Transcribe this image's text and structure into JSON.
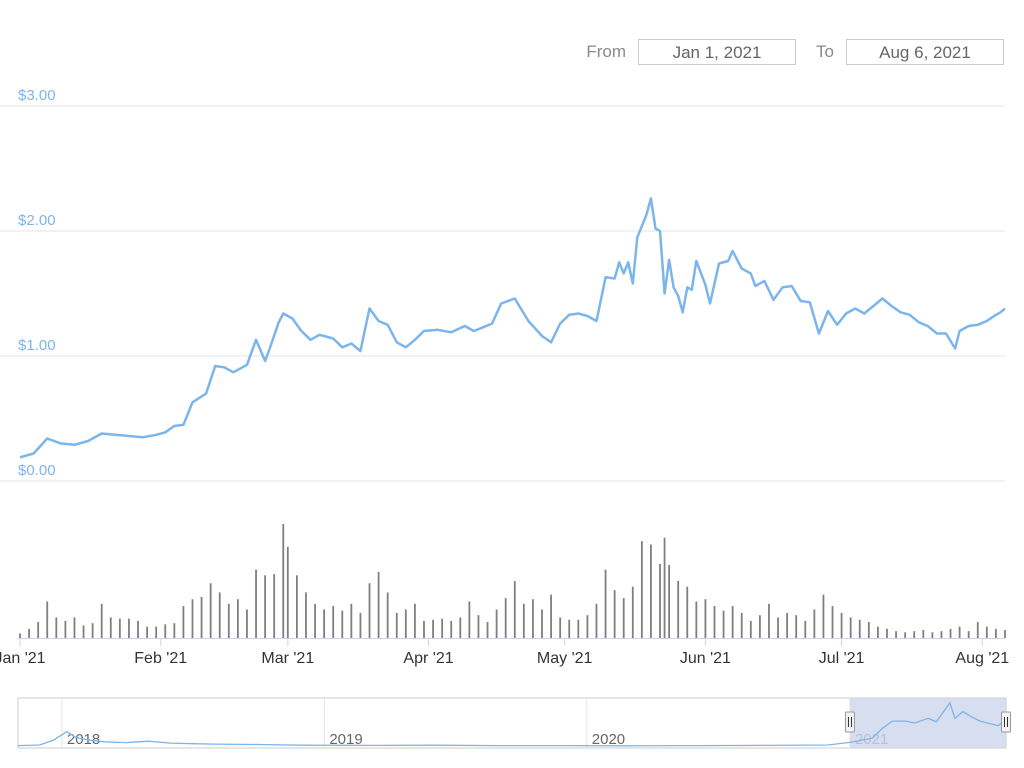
{
  "range_selector": {
    "from_label": "From",
    "from_value": "Jan 1, 2021",
    "to_label": "To",
    "to_value": "Aug 6, 2021"
  },
  "colors": {
    "price_line": "#7cb5ec",
    "volume_bar": "#7f7f7f",
    "grid": "#e6e6e6",
    "navigator_selection": "#ccd6eb"
  },
  "chart_data": {
    "type": "line",
    "title": "",
    "xlabel": "",
    "ylabel": "",
    "ylim": [
      0,
      3
    ],
    "y_ticks": [
      {
        "value": 0,
        "label": "$0.00"
      },
      {
        "value": 1,
        "label": "$1.00"
      },
      {
        "value": 2,
        "label": "$2.00"
      },
      {
        "value": 3,
        "label": "$3.00"
      }
    ],
    "x_ticks": [
      {
        "date": "2021-01-01",
        "label": "Jan '21"
      },
      {
        "date": "2021-02-01",
        "label": "Feb '21"
      },
      {
        "date": "2021-03-01",
        "label": "Mar '21"
      },
      {
        "date": "2021-04-01",
        "label": "Apr '21"
      },
      {
        "date": "2021-05-01",
        "label": "May '21"
      },
      {
        "date": "2021-06-01",
        "label": "Jun '21"
      },
      {
        "date": "2021-07-01",
        "label": "Jul '21"
      },
      {
        "date": "2021-08-01",
        "label": "Aug '21"
      }
    ],
    "grid": true,
    "legend": "none",
    "price_series": [
      [
        "2021-01-01",
        0.19
      ],
      [
        "2021-01-04",
        0.22
      ],
      [
        "2021-01-07",
        0.34
      ],
      [
        "2021-01-10",
        0.3
      ],
      [
        "2021-01-13",
        0.29
      ],
      [
        "2021-01-16",
        0.32
      ],
      [
        "2021-01-19",
        0.38
      ],
      [
        "2021-01-22",
        0.37
      ],
      [
        "2021-01-25",
        0.36
      ],
      [
        "2021-01-28",
        0.35
      ],
      [
        "2021-01-31",
        0.37
      ],
      [
        "2021-02-02",
        0.39
      ],
      [
        "2021-02-04",
        0.44
      ],
      [
        "2021-02-06",
        0.45
      ],
      [
        "2021-02-08",
        0.63
      ],
      [
        "2021-02-11",
        0.7
      ],
      [
        "2021-02-13",
        0.92
      ],
      [
        "2021-02-15",
        0.91
      ],
      [
        "2021-02-17",
        0.87
      ],
      [
        "2021-02-20",
        0.93
      ],
      [
        "2021-02-22",
        1.13
      ],
      [
        "2021-02-24",
        0.96
      ],
      [
        "2021-02-25",
        1.06
      ],
      [
        "2021-02-27",
        1.27
      ],
      [
        "2021-02-28",
        1.34
      ],
      [
        "2021-03-02",
        1.3
      ],
      [
        "2021-03-04",
        1.2
      ],
      [
        "2021-03-06",
        1.13
      ],
      [
        "2021-03-08",
        1.17
      ],
      [
        "2021-03-11",
        1.14
      ],
      [
        "2021-03-13",
        1.07
      ],
      [
        "2021-03-15",
        1.1
      ],
      [
        "2021-03-17",
        1.04
      ],
      [
        "2021-03-19",
        1.38
      ],
      [
        "2021-03-21",
        1.28
      ],
      [
        "2021-03-23",
        1.25
      ],
      [
        "2021-03-25",
        1.11
      ],
      [
        "2021-03-27",
        1.07
      ],
      [
        "2021-03-29",
        1.13
      ],
      [
        "2021-03-31",
        1.2
      ],
      [
        "2021-04-03",
        1.21
      ],
      [
        "2021-04-06",
        1.19
      ],
      [
        "2021-04-09",
        1.24
      ],
      [
        "2021-04-11",
        1.2
      ],
      [
        "2021-04-13",
        1.23
      ],
      [
        "2021-04-15",
        1.26
      ],
      [
        "2021-04-17",
        1.42
      ],
      [
        "2021-04-20",
        1.46
      ],
      [
        "2021-04-23",
        1.28
      ],
      [
        "2021-04-26",
        1.16
      ],
      [
        "2021-04-28",
        1.11
      ],
      [
        "2021-04-30",
        1.26
      ],
      [
        "2021-05-02",
        1.33
      ],
      [
        "2021-05-04",
        1.34
      ],
      [
        "2021-05-06",
        1.32
      ],
      [
        "2021-05-08",
        1.28
      ],
      [
        "2021-05-10",
        1.63
      ],
      [
        "2021-05-12",
        1.62
      ],
      [
        "2021-05-13",
        1.75
      ],
      [
        "2021-05-14",
        1.66
      ],
      [
        "2021-05-15",
        1.75
      ],
      [
        "2021-05-16",
        1.58
      ],
      [
        "2021-05-17",
        1.95
      ],
      [
        "2021-05-19",
        2.13
      ],
      [
        "2021-05-20",
        2.26
      ],
      [
        "2021-05-21",
        2.02
      ],
      [
        "2021-05-22",
        2.0
      ],
      [
        "2021-05-23",
        1.5
      ],
      [
        "2021-05-24",
        1.77
      ],
      [
        "2021-05-25",
        1.55
      ],
      [
        "2021-05-26",
        1.48
      ],
      [
        "2021-05-27",
        1.35
      ],
      [
        "2021-05-28",
        1.55
      ],
      [
        "2021-05-29",
        1.53
      ],
      [
        "2021-05-30",
        1.76
      ],
      [
        "2021-06-01",
        1.57
      ],
      [
        "2021-06-02",
        1.42
      ],
      [
        "2021-06-04",
        1.74
      ],
      [
        "2021-06-06",
        1.76
      ],
      [
        "2021-06-07",
        1.84
      ],
      [
        "2021-06-09",
        1.7
      ],
      [
        "2021-06-11",
        1.66
      ],
      [
        "2021-06-12",
        1.56
      ],
      [
        "2021-06-14",
        1.6
      ],
      [
        "2021-06-16",
        1.45
      ],
      [
        "2021-06-18",
        1.55
      ],
      [
        "2021-06-20",
        1.56
      ],
      [
        "2021-06-22",
        1.44
      ],
      [
        "2021-06-24",
        1.43
      ],
      [
        "2021-06-26",
        1.18
      ],
      [
        "2021-06-28",
        1.36
      ],
      [
        "2021-06-30",
        1.25
      ],
      [
        "2021-07-02",
        1.34
      ],
      [
        "2021-07-04",
        1.38
      ],
      [
        "2021-07-06",
        1.34
      ],
      [
        "2021-07-08",
        1.4
      ],
      [
        "2021-07-10",
        1.46
      ],
      [
        "2021-07-12",
        1.4
      ],
      [
        "2021-07-14",
        1.35
      ],
      [
        "2021-07-16",
        1.33
      ],
      [
        "2021-07-18",
        1.27
      ],
      [
        "2021-07-20",
        1.24
      ],
      [
        "2021-07-22",
        1.18
      ],
      [
        "2021-07-24",
        1.18
      ],
      [
        "2021-07-26",
        1.06
      ],
      [
        "2021-07-27",
        1.2
      ],
      [
        "2021-07-29",
        1.24
      ],
      [
        "2021-07-31",
        1.25
      ],
      [
        "2021-08-02",
        1.28
      ],
      [
        "2021-08-04",
        1.33
      ],
      [
        "2021-08-05",
        1.35
      ],
      [
        "2021-08-06",
        1.38
      ]
    ],
    "volume_series": [
      [
        "2021-01-01",
        4
      ],
      [
        "2021-01-03",
        8
      ],
      [
        "2021-01-05",
        14
      ],
      [
        "2021-01-07",
        32
      ],
      [
        "2021-01-09",
        18
      ],
      [
        "2021-01-11",
        15
      ],
      [
        "2021-01-13",
        18
      ],
      [
        "2021-01-15",
        11
      ],
      [
        "2021-01-17",
        13
      ],
      [
        "2021-01-19",
        30
      ],
      [
        "2021-01-21",
        18
      ],
      [
        "2021-01-23",
        17
      ],
      [
        "2021-01-25",
        17
      ],
      [
        "2021-01-27",
        15
      ],
      [
        "2021-01-29",
        10
      ],
      [
        "2021-01-31",
        10
      ],
      [
        "2021-02-02",
        12
      ],
      [
        "2021-02-04",
        13
      ],
      [
        "2021-02-06",
        28
      ],
      [
        "2021-02-08",
        34
      ],
      [
        "2021-02-10",
        36
      ],
      [
        "2021-02-12",
        48
      ],
      [
        "2021-02-14",
        40
      ],
      [
        "2021-02-16",
        30
      ],
      [
        "2021-02-18",
        34
      ],
      [
        "2021-02-20",
        25
      ],
      [
        "2021-02-22",
        60
      ],
      [
        "2021-02-24",
        55
      ],
      [
        "2021-02-26",
        56
      ],
      [
        "2021-02-28",
        100
      ],
      [
        "2021-03-01",
        80
      ],
      [
        "2021-03-03",
        55
      ],
      [
        "2021-03-05",
        40
      ],
      [
        "2021-03-07",
        30
      ],
      [
        "2021-03-09",
        25
      ],
      [
        "2021-03-11",
        28
      ],
      [
        "2021-03-13",
        24
      ],
      [
        "2021-03-15",
        30
      ],
      [
        "2021-03-17",
        22
      ],
      [
        "2021-03-19",
        48
      ],
      [
        "2021-03-21",
        58
      ],
      [
        "2021-03-23",
        40
      ],
      [
        "2021-03-25",
        22
      ],
      [
        "2021-03-27",
        25
      ],
      [
        "2021-03-29",
        30
      ],
      [
        "2021-03-31",
        15
      ],
      [
        "2021-04-02",
        16
      ],
      [
        "2021-04-04",
        17
      ],
      [
        "2021-04-06",
        15
      ],
      [
        "2021-04-08",
        18
      ],
      [
        "2021-04-10",
        32
      ],
      [
        "2021-04-12",
        20
      ],
      [
        "2021-04-14",
        14
      ],
      [
        "2021-04-16",
        25
      ],
      [
        "2021-04-18",
        35
      ],
      [
        "2021-04-20",
        50
      ],
      [
        "2021-04-22",
        30
      ],
      [
        "2021-04-24",
        34
      ],
      [
        "2021-04-26",
        25
      ],
      [
        "2021-04-28",
        38
      ],
      [
        "2021-04-30",
        18
      ],
      [
        "2021-05-02",
        16
      ],
      [
        "2021-05-04",
        16
      ],
      [
        "2021-05-06",
        20
      ],
      [
        "2021-05-08",
        30
      ],
      [
        "2021-05-10",
        60
      ],
      [
        "2021-05-12",
        42
      ],
      [
        "2021-05-14",
        35
      ],
      [
        "2021-05-16",
        45
      ],
      [
        "2021-05-18",
        85
      ],
      [
        "2021-05-20",
        82
      ],
      [
        "2021-05-22",
        65
      ],
      [
        "2021-05-23",
        88
      ],
      [
        "2021-05-24",
        64
      ],
      [
        "2021-05-26",
        50
      ],
      [
        "2021-05-28",
        45
      ],
      [
        "2021-05-30",
        32
      ],
      [
        "2021-06-01",
        34
      ],
      [
        "2021-06-03",
        28
      ],
      [
        "2021-06-05",
        24
      ],
      [
        "2021-06-07",
        28
      ],
      [
        "2021-06-09",
        22
      ],
      [
        "2021-06-11",
        15
      ],
      [
        "2021-06-13",
        20
      ],
      [
        "2021-06-15",
        30
      ],
      [
        "2021-06-17",
        18
      ],
      [
        "2021-06-19",
        22
      ],
      [
        "2021-06-21",
        20
      ],
      [
        "2021-06-23",
        15
      ],
      [
        "2021-06-25",
        25
      ],
      [
        "2021-06-27",
        38
      ],
      [
        "2021-06-29",
        28
      ],
      [
        "2021-07-01",
        22
      ],
      [
        "2021-07-03",
        18
      ],
      [
        "2021-07-05",
        16
      ],
      [
        "2021-07-07",
        14
      ],
      [
        "2021-07-09",
        10
      ],
      [
        "2021-07-11",
        8
      ],
      [
        "2021-07-13",
        6
      ],
      [
        "2021-07-15",
        5
      ],
      [
        "2021-07-17",
        6
      ],
      [
        "2021-07-19",
        7
      ],
      [
        "2021-07-21",
        5
      ],
      [
        "2021-07-23",
        6
      ],
      [
        "2021-07-25",
        8
      ],
      [
        "2021-07-27",
        10
      ],
      [
        "2021-07-29",
        6
      ],
      [
        "2021-07-31",
        14
      ],
      [
        "2021-08-02",
        10
      ],
      [
        "2021-08-04",
        8
      ],
      [
        "2021-08-06",
        7
      ]
    ],
    "navigator": {
      "labels": [
        "2018",
        "2019",
        "2020",
        "2021"
      ],
      "series": [
        [
          "2017-11-01",
          0.02
        ],
        [
          "2017-12-01",
          0.05
        ],
        [
          "2017-12-20",
          0.3
        ],
        [
          "2018-01-08",
          0.75
        ],
        [
          "2018-01-20",
          0.45
        ],
        [
          "2018-02-10",
          0.3
        ],
        [
          "2018-03-01",
          0.22
        ],
        [
          "2018-04-01",
          0.18
        ],
        [
          "2018-05-01",
          0.25
        ],
        [
          "2018-06-01",
          0.15
        ],
        [
          "2018-07-01",
          0.12
        ],
        [
          "2018-08-01",
          0.1
        ],
        [
          "2018-10-01",
          0.08
        ],
        [
          "2018-12-01",
          0.04
        ],
        [
          "2019-03-01",
          0.03
        ],
        [
          "2019-06-01",
          0.04
        ],
        [
          "2019-09-01",
          0.02
        ],
        [
          "2019-12-01",
          0.02
        ],
        [
          "2020-03-01",
          0.01
        ],
        [
          "2020-06-01",
          0.02
        ],
        [
          "2020-09-01",
          0.03
        ],
        [
          "2020-12-01",
          0.05
        ],
        [
          "2021-01-01",
          0.19
        ],
        [
          "2021-02-01",
          0.4
        ],
        [
          "2021-02-15",
          0.92
        ],
        [
          "2021-03-01",
          1.3
        ],
        [
          "2021-03-20",
          1.3
        ],
        [
          "2021-04-01",
          1.2
        ],
        [
          "2021-04-20",
          1.45
        ],
        [
          "2021-05-01",
          1.26
        ],
        [
          "2021-05-20",
          2.26
        ],
        [
          "2021-05-27",
          1.45
        ],
        [
          "2021-06-07",
          1.8
        ],
        [
          "2021-06-20",
          1.5
        ],
        [
          "2021-07-01",
          1.3
        ],
        [
          "2021-07-26",
          1.06
        ],
        [
          "2021-08-06",
          1.38
        ]
      ],
      "selection": {
        "from": "2021-01-01",
        "to": "2021-08-06"
      }
    }
  }
}
